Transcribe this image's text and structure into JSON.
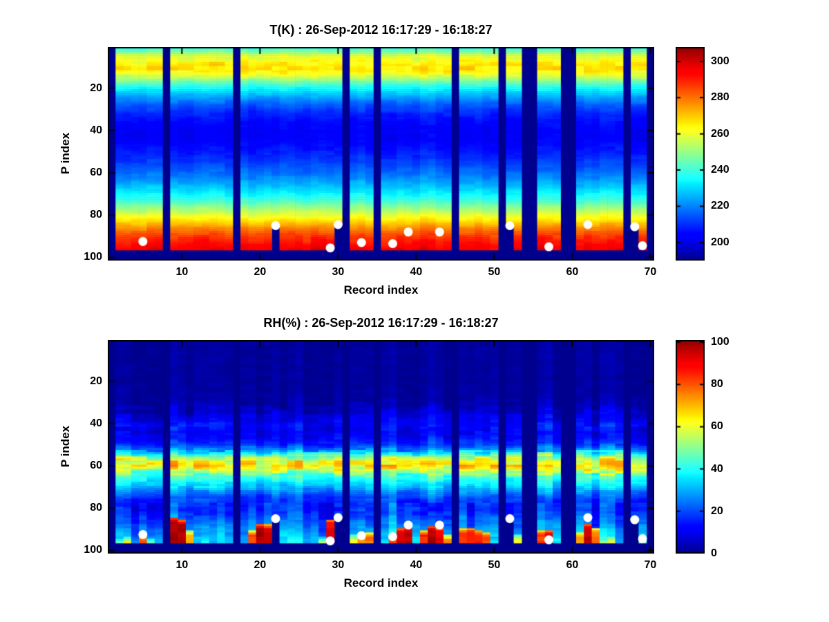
{
  "figure": {
    "background": "#FFFFFF",
    "marker_color": "#FFFFFF",
    "missing_color": "#00008F",
    "colormap": "jet"
  },
  "chart_data": [
    {
      "type": "heatmap",
      "id": "temperature",
      "title": "T(K) : 26-Sep-2012 16:17:29 - 16:18:27",
      "xlabel": "Record index",
      "ylabel": "P index",
      "x_ticks": [
        10,
        20,
        30,
        40,
        50,
        60,
        70
      ],
      "y_ticks": [
        20,
        40,
        60,
        80,
        100
      ],
      "colorbar_ticks": [
        200,
        220,
        240,
        260,
        280,
        300
      ],
      "clim": [
        190,
        308
      ],
      "n_records": 70,
      "n_levels": 101,
      "max_valid_level": 96,
      "missing_records": [
        1,
        8,
        17,
        31,
        35,
        45,
        51,
        54,
        55,
        59,
        60,
        67,
        70
      ],
      "surface_cutoffs": {
        "22": 85.5,
        "30": 84.5,
        "52": 85.5,
        "68": 86
      },
      "white_dots": [
        [
          5,
          92.5
        ],
        [
          22,
          85
        ],
        [
          29,
          95.5
        ],
        [
          30,
          84.5
        ],
        [
          33,
          93
        ],
        [
          37,
          93.5
        ],
        [
          39,
          88
        ],
        [
          43,
          88
        ],
        [
          52,
          85
        ],
        [
          57,
          95
        ],
        [
          62,
          84.5
        ],
        [
          68,
          85.5
        ],
        [
          69,
          94.5
        ]
      ],
      "profile": [
        [
          1,
          240
        ],
        [
          2,
          244
        ],
        [
          3,
          250
        ],
        [
          4,
          255
        ],
        [
          5,
          259
        ],
        [
          7,
          263
        ],
        [
          9,
          266
        ],
        [
          11,
          267
        ],
        [
          13,
          262
        ],
        [
          15,
          254
        ],
        [
          17,
          245
        ],
        [
          19,
          238
        ],
        [
          22,
          230
        ],
        [
          25,
          222
        ],
        [
          28,
          215
        ],
        [
          32,
          209
        ],
        [
          36,
          205
        ],
        [
          40,
          203
        ],
        [
          44,
          203
        ],
        [
          48,
          206
        ],
        [
          52,
          209
        ],
        [
          56,
          213
        ],
        [
          60,
          217
        ],
        [
          64,
          223
        ],
        [
          68,
          230
        ],
        [
          71,
          236
        ],
        [
          74,
          243
        ],
        [
          77,
          251
        ],
        [
          80,
          259
        ],
        [
          83,
          268
        ],
        [
          86,
          277
        ],
        [
          89,
          284
        ],
        [
          92,
          290
        ],
        [
          94,
          293
        ],
        [
          96,
          296
        ]
      ],
      "plumes": [],
      "texture": {
        "seed": 11,
        "col_amp": 2,
        "cell_amp": 2.2,
        "band": [
          6,
          14
        ],
        "band_amp": 3.5,
        "low_p": 90,
        "low_amp": 2,
        "flat_floor": 999
      }
    },
    {
      "type": "heatmap",
      "id": "relative-humidity",
      "title": "RH(%) : 26-Sep-2012 16:17:29 - 16:18:27",
      "xlabel": "Record index",
      "ylabel": "P index",
      "x_ticks": [
        10,
        20,
        30,
        40,
        50,
        60,
        70
      ],
      "y_ticks": [
        20,
        40,
        60,
        80,
        100
      ],
      "colorbar_ticks": [
        0,
        20,
        40,
        60,
        80,
        100
      ],
      "clim": [
        0,
        101
      ],
      "n_records": 70,
      "n_levels": 101,
      "max_valid_level": 96,
      "missing_records": [
        1,
        8,
        17,
        31,
        35,
        45,
        51,
        54,
        55,
        59,
        60,
        67,
        70
      ],
      "surface_cutoffs": {
        "22": 85.5,
        "30": 84.5,
        "52": 85.5,
        "68": 86
      },
      "white_dots": [
        [
          5,
          92.5
        ],
        [
          22,
          85
        ],
        [
          29,
          95.5
        ],
        [
          30,
          84.5
        ],
        [
          33,
          93
        ],
        [
          37,
          93.5
        ],
        [
          39,
          88
        ],
        [
          43,
          88
        ],
        [
          52,
          85
        ],
        [
          57,
          95
        ],
        [
          62,
          84.5
        ],
        [
          68,
          85.5
        ],
        [
          69,
          94.5
        ]
      ],
      "profile": [
        [
          1,
          1.5
        ],
        [
          20,
          1.5
        ],
        [
          28,
          2
        ],
        [
          32,
          4
        ],
        [
          35,
          7
        ],
        [
          38,
          11
        ],
        [
          41,
          13
        ],
        [
          44,
          11
        ],
        [
          47,
          13
        ],
        [
          50,
          18
        ],
        [
          52,
          26
        ],
        [
          54,
          38
        ],
        [
          56,
          52
        ],
        [
          58,
          62
        ],
        [
          60,
          66
        ],
        [
          62,
          58
        ],
        [
          64,
          48
        ],
        [
          66,
          42
        ],
        [
          68,
          37
        ],
        [
          70,
          33
        ],
        [
          72,
          27
        ],
        [
          75,
          20
        ],
        [
          78,
          17
        ],
        [
          81,
          16
        ],
        [
          84,
          20
        ],
        [
          87,
          24
        ],
        [
          90,
          28
        ],
        [
          93,
          31
        ],
        [
          96,
          34
        ]
      ],
      "plumes": [
        [
          2,
          95,
          58
        ],
        [
          3,
          94,
          62
        ],
        [
          5,
          92.5,
          78
        ],
        [
          6,
          95,
          60
        ],
        [
          7,
          96,
          50
        ],
        [
          9,
          84.5,
          98
        ],
        [
          10,
          85.5,
          96
        ],
        [
          11,
          91,
          72
        ],
        [
          13,
          95,
          48
        ],
        [
          19,
          91,
          82
        ],
        [
          20,
          87.5,
          98
        ],
        [
          21,
          88,
          93
        ],
        [
          24,
          96,
          40
        ],
        [
          28,
          94,
          55
        ],
        [
          29,
          85.5,
          90
        ],
        [
          32,
          93,
          62
        ],
        [
          33,
          93,
          72
        ],
        [
          34,
          91.5,
          76
        ],
        [
          37,
          93.5,
          82
        ],
        [
          38,
          89.5,
          93
        ],
        [
          39,
          88.5,
          96
        ],
        [
          41,
          91,
          86
        ],
        [
          42,
          88.5,
          98
        ],
        [
          43,
          89,
          92
        ],
        [
          44,
          93,
          76
        ],
        [
          46,
          89.5,
          82
        ],
        [
          47,
          89.5,
          86
        ],
        [
          48,
          90.5,
          86
        ],
        [
          49,
          91.5,
          80
        ],
        [
          53,
          93,
          62
        ],
        [
          56,
          90.5,
          82
        ],
        [
          57,
          90.5,
          92
        ],
        [
          61,
          91.5,
          72
        ],
        [
          62,
          87.5,
          96
        ],
        [
          63,
          89.5,
          78
        ],
        [
          64,
          94.5,
          58
        ],
        [
          65,
          93.5,
          62
        ],
        [
          69,
          95,
          56
        ]
      ],
      "texture": {
        "seed": 23,
        "col_amp": 5,
        "cell_amp": 4,
        "band": [
          53,
          64
        ],
        "band_amp": 8,
        "low_p": 78,
        "low_amp": 6,
        "flat_floor": 5
      }
    }
  ]
}
